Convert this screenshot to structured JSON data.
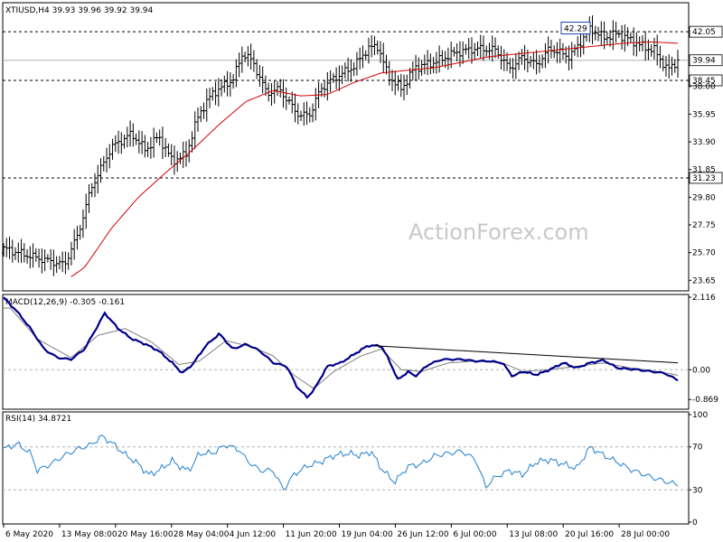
{
  "watermark": "ActionForex.com",
  "chart_data": [
    {
      "panel": "price",
      "type": "ohlc",
      "title": "XTIUSD,H4  39.93 39.96 39.92 39.94",
      "ylim": [
        23.0,
        44.0
      ],
      "yticks": [
        "42.05",
        "39.94",
        "38.45",
        "38.00",
        "35.95",
        "33.90",
        "31.85",
        "31.23",
        "29.80",
        "27.75",
        "25.70",
        "23.65"
      ],
      "ytick_values": [
        42.05,
        39.94,
        38.45,
        38.0,
        35.95,
        33.9,
        31.85,
        31.23,
        29.8,
        27.75,
        25.7,
        23.65
      ],
      "boxed_ticks": [
        "42.05",
        "39.94",
        "38.45",
        "31.23"
      ],
      "hlines": [
        42.05,
        38.45,
        31.23
      ],
      "current_price": 39.94,
      "callout": {
        "text": "42.29",
        "value": 42.29,
        "x": 0.87
      },
      "line_color": "#000000",
      "ma_color": "#d40000",
      "price_anchors": [
        [
          0,
          26.0
        ],
        [
          0.05,
          25.3
        ],
        [
          0.09,
          24.8
        ],
        [
          0.11,
          27.0
        ],
        [
          0.13,
          30.5
        ],
        [
          0.16,
          33.5
        ],
        [
          0.19,
          34.5
        ],
        [
          0.21,
          33.3
        ],
        [
          0.23,
          34.3
        ],
        [
          0.25,
          32.5
        ],
        [
          0.27,
          32.9
        ],
        [
          0.29,
          36.0
        ],
        [
          0.31,
          37.5
        ],
        [
          0.34,
          38.5
        ],
        [
          0.355,
          40.5
        ],
        [
          0.37,
          39.8
        ],
        [
          0.39,
          37.5
        ],
        [
          0.41,
          37.8
        ],
        [
          0.42,
          37.0
        ],
        [
          0.44,
          35.8
        ],
        [
          0.455,
          36.0
        ],
        [
          0.47,
          37.8
        ],
        [
          0.49,
          38.6
        ],
        [
          0.52,
          39.5
        ],
        [
          0.54,
          40.8
        ],
        [
          0.555,
          41.0
        ],
        [
          0.57,
          38.8
        ],
        [
          0.59,
          37.8
        ],
        [
          0.61,
          39.4
        ],
        [
          0.64,
          39.8
        ],
        [
          0.67,
          40.5
        ],
        [
          0.7,
          40.8
        ],
        [
          0.73,
          40.7
        ],
        [
          0.75,
          39.3
        ],
        [
          0.77,
          40.2
        ],
        [
          0.79,
          39.6
        ],
        [
          0.81,
          40.8
        ],
        [
          0.84,
          40.2
        ],
        [
          0.87,
          42.29
        ],
        [
          0.89,
          41.6
        ],
        [
          0.91,
          41.9
        ],
        [
          0.94,
          41.2
        ],
        [
          0.95,
          40.9
        ],
        [
          0.965,
          40.7
        ],
        [
          0.985,
          39.2
        ],
        [
          1.0,
          39.94
        ]
      ],
      "ma_anchors": [
        [
          0.1,
          23.9
        ],
        [
          0.12,
          24.6
        ],
        [
          0.16,
          27.5
        ],
        [
          0.2,
          29.8
        ],
        [
          0.24,
          31.6
        ],
        [
          0.28,
          33.3
        ],
        [
          0.32,
          35.2
        ],
        [
          0.36,
          36.9
        ],
        [
          0.4,
          37.7
        ],
        [
          0.44,
          37.3
        ],
        [
          0.48,
          37.4
        ],
        [
          0.52,
          38.3
        ],
        [
          0.56,
          39.0
        ],
        [
          0.6,
          39.2
        ],
        [
          0.64,
          39.4
        ],
        [
          0.68,
          39.8
        ],
        [
          0.72,
          40.2
        ],
        [
          0.76,
          40.4
        ],
        [
          0.8,
          40.6
        ],
        [
          0.84,
          40.8
        ],
        [
          0.88,
          41.0
        ],
        [
          0.92,
          41.2
        ],
        [
          0.96,
          41.3
        ],
        [
          1.0,
          41.2
        ]
      ]
    },
    {
      "panel": "macd",
      "type": "line",
      "title": "MACD(12,26,9) -0.305 -0.161",
      "ylim": [
        -1.1,
        2.116
      ],
      "yticks": [
        "2.116",
        "0.00",
        "-0.869"
      ],
      "ytick_values": [
        2.116,
        0.0,
        -0.869
      ],
      "macd_color": "#00008b",
      "signal_color": "#7f7f7f",
      "macd_anchors": [
        [
          0,
          2.1
        ],
        [
          0.02,
          1.7
        ],
        [
          0.04,
          1.2
        ],
        [
          0.06,
          0.6
        ],
        [
          0.08,
          0.35
        ],
        [
          0.1,
          0.3
        ],
        [
          0.12,
          0.6
        ],
        [
          0.14,
          1.3
        ],
        [
          0.15,
          1.65
        ],
        [
          0.17,
          1.2
        ],
        [
          0.19,
          0.9
        ],
        [
          0.21,
          0.75
        ],
        [
          0.23,
          0.55
        ],
        [
          0.25,
          0.2
        ],
        [
          0.265,
          -0.1
        ],
        [
          0.28,
          0.15
        ],
        [
          0.3,
          0.7
        ],
        [
          0.32,
          1.05
        ],
        [
          0.34,
          0.6
        ],
        [
          0.36,
          0.75
        ],
        [
          0.38,
          0.55
        ],
        [
          0.4,
          0.2
        ],
        [
          0.42,
          0.1
        ],
        [
          0.435,
          -0.5
        ],
        [
          0.45,
          -0.8
        ],
        [
          0.46,
          -0.6
        ],
        [
          0.48,
          0.1
        ],
        [
          0.5,
          0.2
        ],
        [
          0.52,
          0.45
        ],
        [
          0.54,
          0.7
        ],
        [
          0.56,
          0.7
        ],
        [
          0.57,
          0.35
        ],
        [
          0.585,
          -0.3
        ],
        [
          0.6,
          -0.05
        ],
        [
          0.61,
          -0.2
        ],
        [
          0.63,
          0.15
        ],
        [
          0.65,
          0.3
        ],
        [
          0.68,
          0.3
        ],
        [
          0.7,
          0.25
        ],
        [
          0.72,
          0.25
        ],
        [
          0.74,
          0.2
        ],
        [
          0.755,
          -0.2
        ],
        [
          0.77,
          -0.05
        ],
        [
          0.79,
          -0.15
        ],
        [
          0.81,
          0.0
        ],
        [
          0.83,
          0.2
        ],
        [
          0.85,
          0.05
        ],
        [
          0.87,
          0.2
        ],
        [
          0.89,
          0.28
        ],
        [
          0.91,
          0.05
        ],
        [
          0.94,
          0.0
        ],
        [
          0.96,
          -0.05
        ],
        [
          0.98,
          -0.1
        ],
        [
          1.0,
          -0.305
        ]
      ],
      "signal_anchors": [
        [
          0.01,
          1.8
        ],
        [
          0.05,
          0.9
        ],
        [
          0.1,
          0.35
        ],
        [
          0.14,
          1.0
        ],
        [
          0.18,
          1.2
        ],
        [
          0.22,
          0.8
        ],
        [
          0.26,
          0.15
        ],
        [
          0.29,
          0.25
        ],
        [
          0.33,
          0.85
        ],
        [
          0.37,
          0.65
        ],
        [
          0.4,
          0.4
        ],
        [
          0.43,
          -0.15
        ],
        [
          0.46,
          -0.55
        ],
        [
          0.49,
          -0.05
        ],
        [
          0.53,
          0.4
        ],
        [
          0.56,
          0.6
        ],
        [
          0.59,
          0.0
        ],
        [
          0.62,
          -0.05
        ],
        [
          0.66,
          0.2
        ],
        [
          0.7,
          0.25
        ],
        [
          0.74,
          0.2
        ],
        [
          0.77,
          -0.05
        ],
        [
          0.81,
          0.0
        ],
        [
          0.85,
          0.1
        ],
        [
          0.89,
          0.2
        ],
        [
          0.93,
          0.05
        ],
        [
          0.97,
          -0.05
        ],
        [
          1.0,
          -0.161
        ]
      ],
      "trendline": [
        [
          0.55,
          0.7
        ],
        [
          1.0,
          0.2
        ]
      ]
    },
    {
      "panel": "rsi",
      "type": "line",
      "title": "RSI(14) 34.8721",
      "ylim": [
        0,
        100
      ],
      "yticks": [
        "100",
        "70",
        "30",
        "0"
      ],
      "ytick_values": [
        100,
        70,
        30,
        0
      ],
      "hlines": [
        70,
        30
      ],
      "line_color": "#1e7fd0",
      "rsi_anchors": [
        [
          0,
          68
        ],
        [
          0.02,
          73
        ],
        [
          0.04,
          64
        ],
        [
          0.05,
          48
        ],
        [
          0.07,
          54
        ],
        [
          0.09,
          62
        ],
        [
          0.11,
          68
        ],
        [
          0.13,
          72
        ],
        [
          0.145,
          80
        ],
        [
          0.16,
          74
        ],
        [
          0.18,
          63
        ],
        [
          0.2,
          54
        ],
        [
          0.215,
          44
        ],
        [
          0.23,
          48
        ],
        [
          0.25,
          57
        ],
        [
          0.27,
          48
        ],
        [
          0.28,
          52
        ],
        [
          0.29,
          64
        ],
        [
          0.31,
          64
        ],
        [
          0.33,
          72
        ],
        [
          0.35,
          67
        ],
        [
          0.36,
          58
        ],
        [
          0.38,
          48
        ],
        [
          0.4,
          48
        ],
        [
          0.415,
          30
        ],
        [
          0.43,
          44
        ],
        [
          0.45,
          52
        ],
        [
          0.47,
          56
        ],
        [
          0.49,
          62
        ],
        [
          0.51,
          64
        ],
        [
          0.53,
          62
        ],
        [
          0.545,
          66
        ],
        [
          0.56,
          50
        ],
        [
          0.58,
          37
        ],
        [
          0.6,
          52
        ],
        [
          0.62,
          54
        ],
        [
          0.64,
          62
        ],
        [
          0.66,
          64
        ],
        [
          0.68,
          66
        ],
        [
          0.7,
          58
        ],
        [
          0.715,
          33
        ],
        [
          0.73,
          42
        ],
        [
          0.75,
          48
        ],
        [
          0.77,
          44
        ],
        [
          0.79,
          56
        ],
        [
          0.81,
          58
        ],
        [
          0.83,
          54
        ],
        [
          0.85,
          50
        ],
        [
          0.87,
          70
        ],
        [
          0.89,
          62
        ],
        [
          0.91,
          56
        ],
        [
          0.93,
          49
        ],
        [
          0.96,
          42
        ],
        [
          0.98,
          38
        ],
        [
          1.0,
          34.8721
        ]
      ]
    }
  ],
  "x_axis": {
    "labels": [
      "6 May 2020",
      "13 May 08:00",
      "20 May 16:00",
      "28 May 04:00",
      "4 Jun 12:00",
      "11 Jun 20:00",
      "19 Jun 04:00",
      "26 Jun 12:00",
      "6 Jul 00:00",
      "13 Jul 08:00",
      "20 Jul 16:00",
      "28 Jul 00:00"
    ],
    "positions": [
      0.0,
      0.083,
      0.166,
      0.249,
      0.332,
      0.415,
      0.498,
      0.581,
      0.664,
      0.747,
      0.83,
      0.913
    ]
  }
}
